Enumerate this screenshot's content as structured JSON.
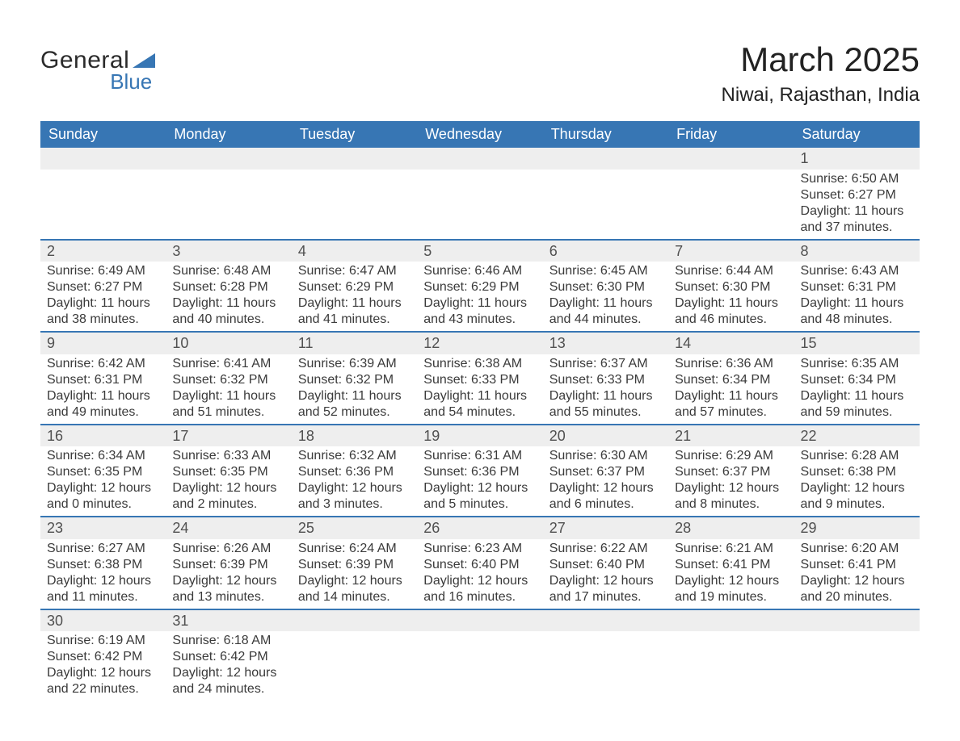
{
  "brand": {
    "general": "General",
    "blue": "Blue"
  },
  "title": "March 2025",
  "location": "Niwai, Rajasthan, India",
  "colors": {
    "header_bg": "#3776b4",
    "header_text": "#ffffff",
    "row_separator": "#3776b4",
    "daynum_bg": "#eeeeee",
    "body_text": "#3a3a3a",
    "page_bg": "#ffffff"
  },
  "typography": {
    "title_fontsize": 42,
    "location_fontsize": 24,
    "header_fontsize": 18,
    "body_fontsize": 16
  },
  "day_headers": [
    "Sunday",
    "Monday",
    "Tuesday",
    "Wednesday",
    "Thursday",
    "Friday",
    "Saturday"
  ],
  "weeks": [
    [
      null,
      null,
      null,
      null,
      null,
      null,
      {
        "n": "1",
        "sr": "Sunrise: 6:50 AM",
        "ss": "Sunset: 6:27 PM",
        "dl": "Daylight: 11 hours and 37 minutes."
      }
    ],
    [
      {
        "n": "2",
        "sr": "Sunrise: 6:49 AM",
        "ss": "Sunset: 6:27 PM",
        "dl": "Daylight: 11 hours and 38 minutes."
      },
      {
        "n": "3",
        "sr": "Sunrise: 6:48 AM",
        "ss": "Sunset: 6:28 PM",
        "dl": "Daylight: 11 hours and 40 minutes."
      },
      {
        "n": "4",
        "sr": "Sunrise: 6:47 AM",
        "ss": "Sunset: 6:29 PM",
        "dl": "Daylight: 11 hours and 41 minutes."
      },
      {
        "n": "5",
        "sr": "Sunrise: 6:46 AM",
        "ss": "Sunset: 6:29 PM",
        "dl": "Daylight: 11 hours and 43 minutes."
      },
      {
        "n": "6",
        "sr": "Sunrise: 6:45 AM",
        "ss": "Sunset: 6:30 PM",
        "dl": "Daylight: 11 hours and 44 minutes."
      },
      {
        "n": "7",
        "sr": "Sunrise: 6:44 AM",
        "ss": "Sunset: 6:30 PM",
        "dl": "Daylight: 11 hours and 46 minutes."
      },
      {
        "n": "8",
        "sr": "Sunrise: 6:43 AM",
        "ss": "Sunset: 6:31 PM",
        "dl": "Daylight: 11 hours and 48 minutes."
      }
    ],
    [
      {
        "n": "9",
        "sr": "Sunrise: 6:42 AM",
        "ss": "Sunset: 6:31 PM",
        "dl": "Daylight: 11 hours and 49 minutes."
      },
      {
        "n": "10",
        "sr": "Sunrise: 6:41 AM",
        "ss": "Sunset: 6:32 PM",
        "dl": "Daylight: 11 hours and 51 minutes."
      },
      {
        "n": "11",
        "sr": "Sunrise: 6:39 AM",
        "ss": "Sunset: 6:32 PM",
        "dl": "Daylight: 11 hours and 52 minutes."
      },
      {
        "n": "12",
        "sr": "Sunrise: 6:38 AM",
        "ss": "Sunset: 6:33 PM",
        "dl": "Daylight: 11 hours and 54 minutes."
      },
      {
        "n": "13",
        "sr": "Sunrise: 6:37 AM",
        "ss": "Sunset: 6:33 PM",
        "dl": "Daylight: 11 hours and 55 minutes."
      },
      {
        "n": "14",
        "sr": "Sunrise: 6:36 AM",
        "ss": "Sunset: 6:34 PM",
        "dl": "Daylight: 11 hours and 57 minutes."
      },
      {
        "n": "15",
        "sr": "Sunrise: 6:35 AM",
        "ss": "Sunset: 6:34 PM",
        "dl": "Daylight: 11 hours and 59 minutes."
      }
    ],
    [
      {
        "n": "16",
        "sr": "Sunrise: 6:34 AM",
        "ss": "Sunset: 6:35 PM",
        "dl": "Daylight: 12 hours and 0 minutes."
      },
      {
        "n": "17",
        "sr": "Sunrise: 6:33 AM",
        "ss": "Sunset: 6:35 PM",
        "dl": "Daylight: 12 hours and 2 minutes."
      },
      {
        "n": "18",
        "sr": "Sunrise: 6:32 AM",
        "ss": "Sunset: 6:36 PM",
        "dl": "Daylight: 12 hours and 3 minutes."
      },
      {
        "n": "19",
        "sr": "Sunrise: 6:31 AM",
        "ss": "Sunset: 6:36 PM",
        "dl": "Daylight: 12 hours and 5 minutes."
      },
      {
        "n": "20",
        "sr": "Sunrise: 6:30 AM",
        "ss": "Sunset: 6:37 PM",
        "dl": "Daylight: 12 hours and 6 minutes."
      },
      {
        "n": "21",
        "sr": "Sunrise: 6:29 AM",
        "ss": "Sunset: 6:37 PM",
        "dl": "Daylight: 12 hours and 8 minutes."
      },
      {
        "n": "22",
        "sr": "Sunrise: 6:28 AM",
        "ss": "Sunset: 6:38 PM",
        "dl": "Daylight: 12 hours and 9 minutes."
      }
    ],
    [
      {
        "n": "23",
        "sr": "Sunrise: 6:27 AM",
        "ss": "Sunset: 6:38 PM",
        "dl": "Daylight: 12 hours and 11 minutes."
      },
      {
        "n": "24",
        "sr": "Sunrise: 6:26 AM",
        "ss": "Sunset: 6:39 PM",
        "dl": "Daylight: 12 hours and 13 minutes."
      },
      {
        "n": "25",
        "sr": "Sunrise: 6:24 AM",
        "ss": "Sunset: 6:39 PM",
        "dl": "Daylight: 12 hours and 14 minutes."
      },
      {
        "n": "26",
        "sr": "Sunrise: 6:23 AM",
        "ss": "Sunset: 6:40 PM",
        "dl": "Daylight: 12 hours and 16 minutes."
      },
      {
        "n": "27",
        "sr": "Sunrise: 6:22 AM",
        "ss": "Sunset: 6:40 PM",
        "dl": "Daylight: 12 hours and 17 minutes."
      },
      {
        "n": "28",
        "sr": "Sunrise: 6:21 AM",
        "ss": "Sunset: 6:41 PM",
        "dl": "Daylight: 12 hours and 19 minutes."
      },
      {
        "n": "29",
        "sr": "Sunrise: 6:20 AM",
        "ss": "Sunset: 6:41 PM",
        "dl": "Daylight: 12 hours and 20 minutes."
      }
    ],
    [
      {
        "n": "30",
        "sr": "Sunrise: 6:19 AM",
        "ss": "Sunset: 6:42 PM",
        "dl": "Daylight: 12 hours and 22 minutes."
      },
      {
        "n": "31",
        "sr": "Sunrise: 6:18 AM",
        "ss": "Sunset: 6:42 PM",
        "dl": "Daylight: 12 hours and 24 minutes."
      },
      null,
      null,
      null,
      null,
      null
    ]
  ]
}
